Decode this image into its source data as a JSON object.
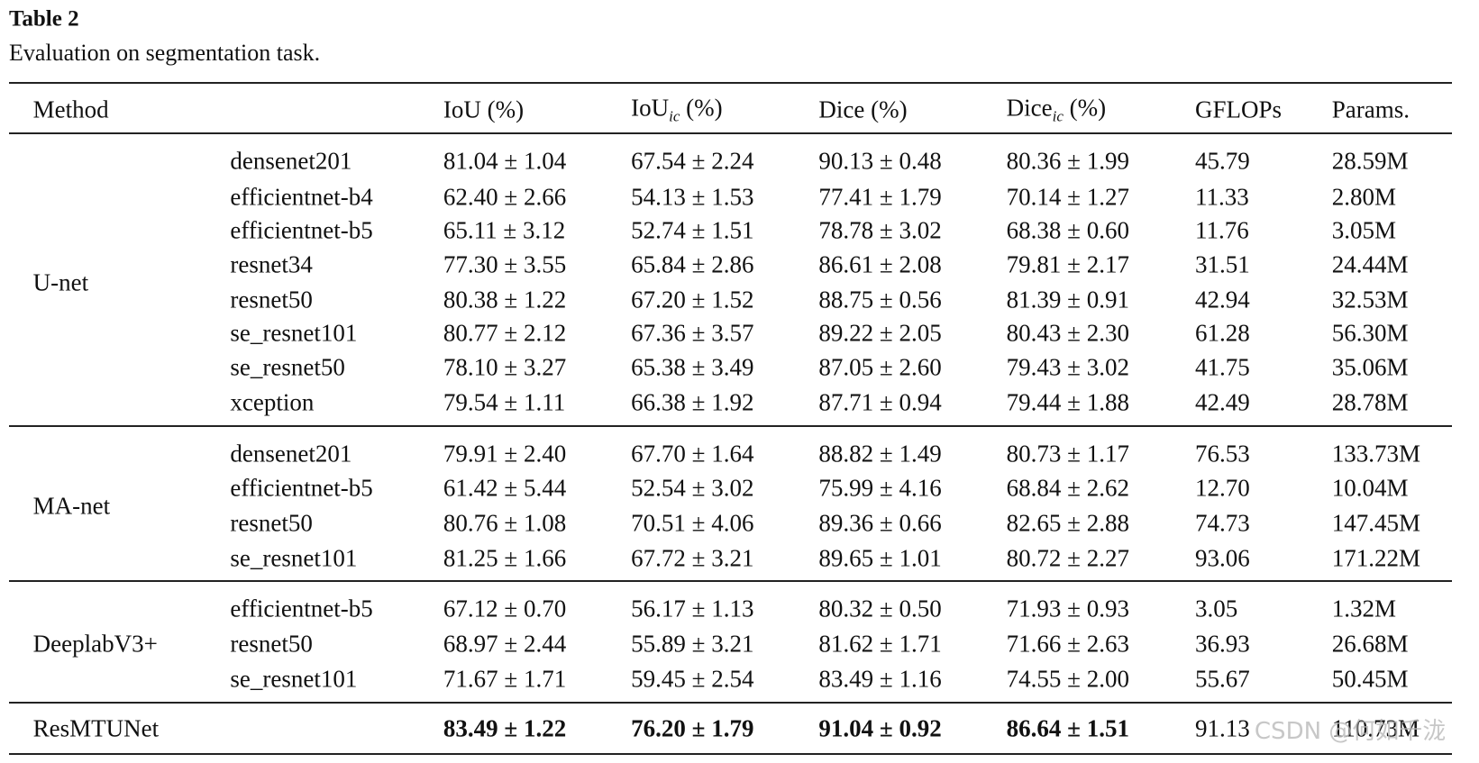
{
  "header": {
    "title": "Table 2",
    "subtitle": "Evaluation on segmentation task."
  },
  "table": {
    "columns": [
      {
        "text": "Method"
      },
      {
        "text": "IoU (%)"
      },
      {
        "text": "IoU",
        "sub": "ic",
        "suffix": " (%)"
      },
      {
        "text": "Dice (%)"
      },
      {
        "text": "Dice",
        "sub": "ic",
        "suffix": " (%)"
      },
      {
        "text": "GFLOPs"
      },
      {
        "text": "Params."
      }
    ],
    "groups": [
      {
        "method": "U-net",
        "rows": [
          {
            "backbone": "densenet201",
            "cells": [
              "81.04 ± 1.04",
              "67.54 ± 2.24",
              "90.13 ± 0.48",
              "80.36 ± 1.99",
              "45.79",
              "28.59M"
            ]
          },
          {
            "backbone": "efficientnet-b4",
            "cells": [
              "62.40 ± 2.66",
              "54.13 ± 1.53",
              "77.41 ± 1.79",
              "70.14 ± 1.27",
              "11.33",
              "2.80M"
            ]
          },
          {
            "backbone": "efficientnet-b5",
            "cells": [
              "65.11 ± 3.12",
              "52.74 ± 1.51",
              "78.78 ± 3.02",
              "68.38 ± 0.60",
              "11.76",
              "3.05M"
            ]
          },
          {
            "backbone": "resnet34",
            "cells": [
              "77.30 ± 3.55",
              "65.84 ± 2.86",
              "86.61 ± 2.08",
              "79.81 ± 2.17",
              "31.51",
              "24.44M"
            ]
          },
          {
            "backbone": "resnet50",
            "cells": [
              "80.38 ± 1.22",
              "67.20 ± 1.52",
              "88.75 ± 0.56",
              "81.39 ± 0.91",
              "42.94",
              "32.53M"
            ]
          },
          {
            "backbone": "se_resnet101",
            "cells": [
              "80.77 ± 2.12",
              "67.36 ± 3.57",
              "89.22 ± 2.05",
              "80.43 ± 2.30",
              "61.28",
              "56.30M"
            ]
          },
          {
            "backbone": "se_resnet50",
            "cells": [
              "78.10 ± 3.27",
              "65.38 ± 3.49",
              "87.05 ± 2.60",
              "79.43 ± 3.02",
              "41.75",
              "35.06M"
            ]
          },
          {
            "backbone": "xception",
            "cells": [
              "79.54 ± 1.11",
              "66.38 ± 1.92",
              "87.71 ± 0.94",
              "79.44 ± 1.88",
              "42.49",
              "28.78M"
            ]
          }
        ]
      },
      {
        "method": "MA-net",
        "rows": [
          {
            "backbone": "densenet201",
            "cells": [
              "79.91 ± 2.40",
              "67.70 ± 1.64",
              "88.82 ± 1.49",
              "80.73 ± 1.17",
              "76.53",
              "133.73M"
            ]
          },
          {
            "backbone": "efficientnet-b5",
            "cells": [
              "61.42 ± 5.44",
              "52.54 ± 3.02",
              "75.99 ± 4.16",
              "68.84 ± 2.62",
              "12.70",
              "10.04M"
            ]
          },
          {
            "backbone": "resnet50",
            "cells": [
              "80.76 ± 1.08",
              "70.51 ± 4.06",
              "89.36 ± 0.66",
              "82.65 ± 2.88",
              "74.73",
              "147.45M"
            ]
          },
          {
            "backbone": "se_resnet101",
            "cells": [
              "81.25 ± 1.66",
              "67.72 ± 3.21",
              "89.65 ± 1.01",
              "80.72 ± 2.27",
              "93.06",
              "171.22M"
            ]
          }
        ]
      },
      {
        "method": "DeeplabV3+",
        "rows": [
          {
            "backbone": "efficientnet-b5",
            "cells": [
              "67.12 ± 0.70",
              "56.17 ± 1.13",
              "80.32 ± 0.50",
              "71.93 ± 0.93",
              "3.05",
              "1.32M"
            ]
          },
          {
            "backbone": "resnet50",
            "cells": [
              "68.97 ± 2.44",
              "55.89 ± 3.21",
              "81.62 ± 1.71",
              "71.66 ± 2.63",
              "36.93",
              "26.68M"
            ]
          },
          {
            "backbone": "se_resnet101",
            "cells": [
              "71.67 ± 1.71",
              "59.45 ± 2.54",
              "83.49 ± 1.16",
              "74.55 ± 2.00",
              "55.67",
              "50.45M"
            ]
          }
        ]
      },
      {
        "method": "ResMTUNet",
        "rows": [
          {
            "cells": [
              "83.49 ± 1.22",
              "76.20 ± 1.79",
              "91.04 ± 0.92",
              "86.64 ± 1.51",
              "91.13",
              "110.73M"
            ]
          }
        ]
      }
    ]
  },
  "watermark": "CSDN @何如千泷"
}
